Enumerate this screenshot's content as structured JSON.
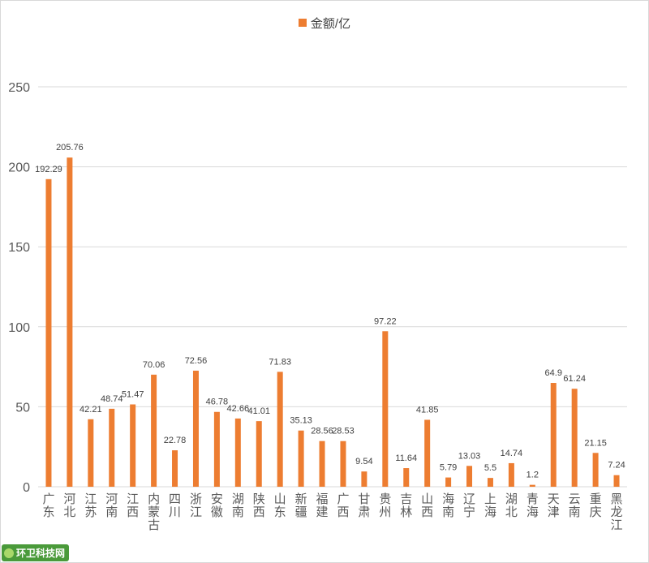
{
  "chart_data": {
    "type": "bar",
    "title": "",
    "xlabel": "",
    "ylabel": "",
    "ylim": [
      0,
      250
    ],
    "yticks": [
      "0",
      "50",
      "100",
      "150",
      "200",
      "250"
    ],
    "grid": true,
    "legend_position": "top-center",
    "categories": [
      "广东",
      "河北",
      "江苏",
      "河南",
      "江西",
      "内蒙古",
      "四川",
      "浙江",
      "安徽",
      "湖南",
      "陕西",
      "山东",
      "新疆",
      "福建",
      "广西",
      "甘肃",
      "贵州",
      "吉林",
      "山西",
      "海南",
      "辽宁",
      "上海",
      "湖北",
      "青海",
      "天津",
      "云南",
      "重庆",
      "黑龙江"
    ],
    "series": [
      {
        "name": "金额/亿",
        "values": [
          192.29,
          205.76,
          42.21,
          48.74,
          51.47,
          70.06,
          22.78,
          72.56,
          46.78,
          42.66,
          41.01,
          71.83,
          35.13,
          28.56,
          28.53,
          9.54,
          97.22,
          11.64,
          41.85,
          5.79,
          13.03,
          5.5,
          14.74,
          1.2,
          64.9,
          61.24,
          21.15,
          7.24
        ],
        "labels": [
          "192.29",
          "205.76",
          "42.21",
          "48.74",
          "51.47",
          "70.06",
          "22.78",
          "72.56",
          "46.78",
          "42.66",
          "41.01",
          "71.83",
          "35.13",
          "28.56",
          "28.53",
          "9.54",
          "97.22",
          "11.64",
          "41.85",
          "5.79",
          "13.03",
          "5.5",
          "14.74",
          "1.2",
          "64.9",
          "61.24",
          "21.15",
          "7.24"
        ]
      }
    ],
    "colors": {
      "bar": "#ED7D31",
      "grid": "#d9d9d9",
      "axis_text": "#595959",
      "label_text": "#404040"
    }
  },
  "watermark": {
    "text": "环卫科技网"
  }
}
